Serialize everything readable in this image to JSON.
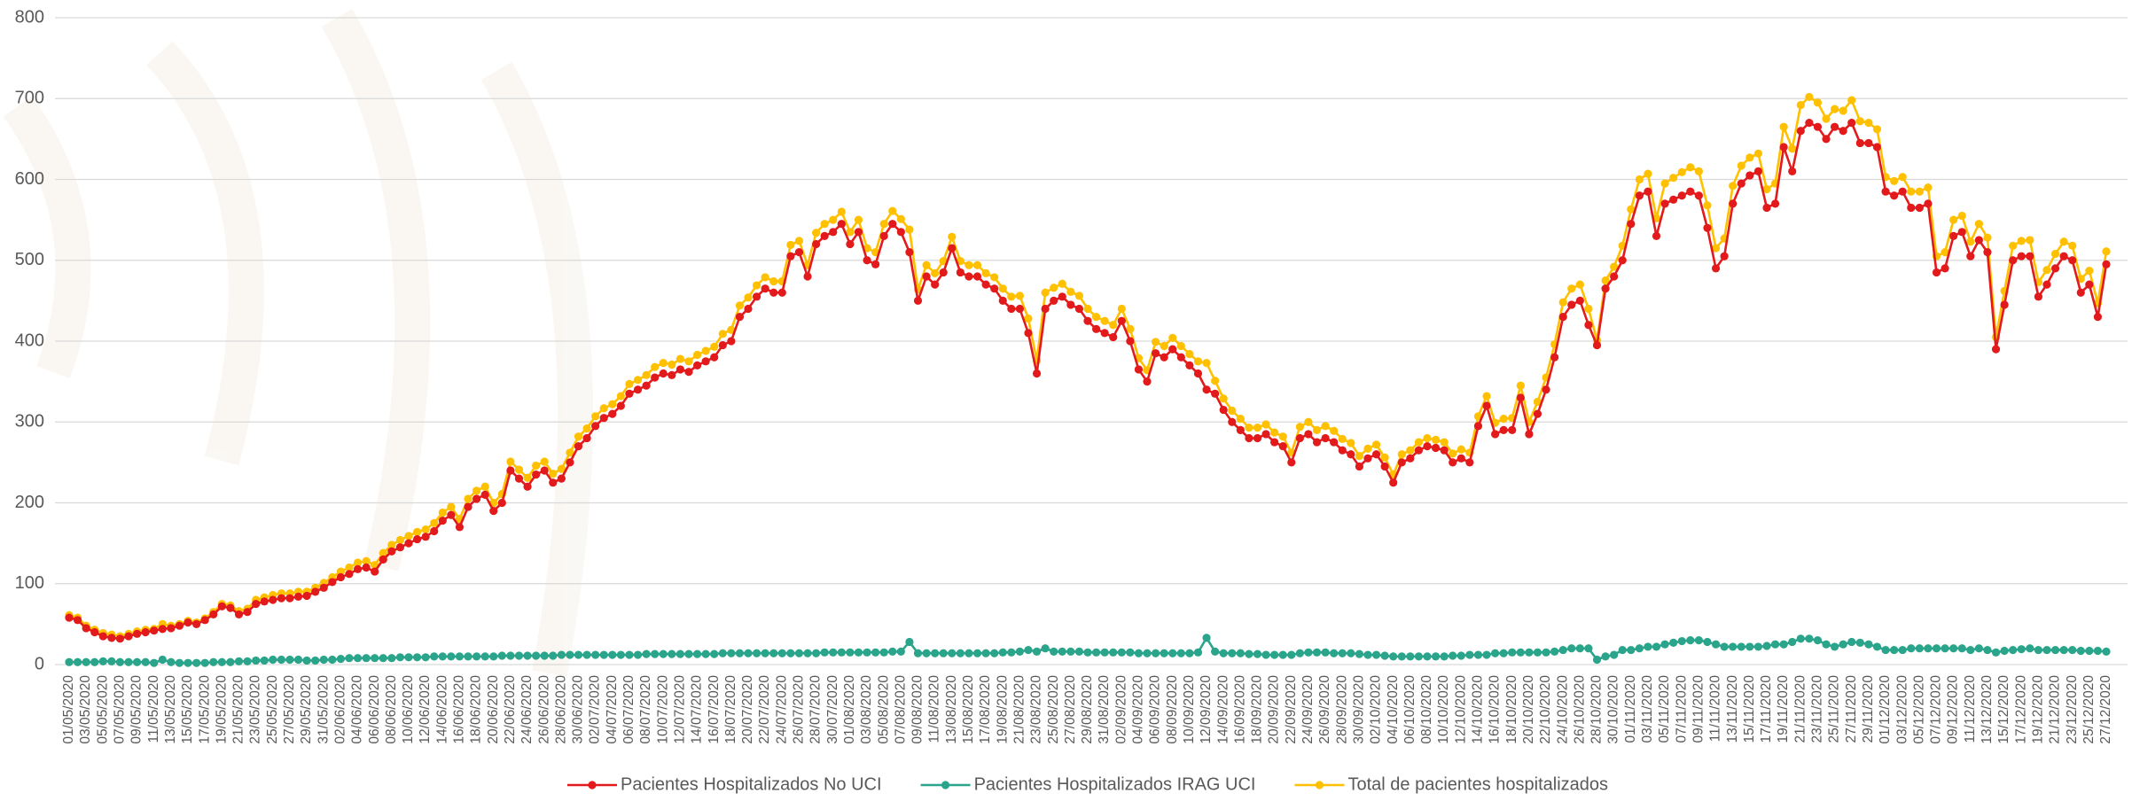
{
  "chart_data": {
    "type": "line",
    "categories": [
      "01/05/2020",
      null,
      "03/05/2020",
      null,
      "05/05/2020",
      null,
      "07/05/2020",
      null,
      "09/05/2020",
      null,
      "11/05/2020",
      null,
      "13/05/2020",
      null,
      "15/05/2020",
      null,
      "17/05/2020",
      null,
      "19/05/2020",
      null,
      "21/05/2020",
      null,
      "23/05/2020",
      null,
      "25/05/2020",
      null,
      "27/05/2020",
      null,
      "29/05/2020",
      null,
      "31/05/2020",
      null,
      "02/06/2020",
      null,
      "04/06/2020",
      null,
      "06/06/2020",
      null,
      "08/06/2020",
      null,
      "10/06/2020",
      null,
      "12/06/2020",
      null,
      "14/06/2020",
      null,
      "16/06/2020",
      null,
      "18/06/2020",
      null,
      "20/06/2020",
      null,
      "22/06/2020",
      null,
      "24/06/2020",
      null,
      "26/06/2020",
      null,
      "28/06/2020",
      null,
      "30/06/2020",
      null,
      "02/07/2020",
      null,
      "04/07/2020",
      null,
      "06/07/2020",
      null,
      "08/07/2020",
      null,
      "10/07/2020",
      null,
      "12/07/2020",
      null,
      "14/07/2020",
      null,
      "16/07/2020",
      null,
      "18/07/2020",
      null,
      "20/07/2020",
      null,
      "22/07/2020",
      null,
      "24/07/2020",
      null,
      "26/07/2020",
      null,
      "28/07/2020",
      null,
      "30/07/2020",
      null,
      "01/08/2020",
      null,
      "03/08/2020",
      null,
      "05/08/2020",
      null,
      "07/08/2020",
      null,
      "09/08/2020",
      null,
      "11/08/2020",
      null,
      "13/08/2020",
      null,
      "15/08/2020",
      null,
      "17/08/2020",
      null,
      "19/08/2020",
      null,
      "21/08/2020",
      null,
      "23/08/2020",
      null,
      "25/08/2020",
      null,
      "27/08/2020",
      null,
      "29/08/2020",
      null,
      "31/08/2020",
      null,
      "02/09/2020",
      null,
      "04/09/2020",
      null,
      "06/09/2020",
      null,
      "08/09/2020",
      null,
      "10/09/2020",
      null,
      "12/09/2020",
      null,
      "14/09/2020",
      null,
      "16/09/2020",
      null,
      "18/09/2020",
      null,
      "20/09/2020",
      null,
      "22/09/2020",
      null,
      "24/09/2020",
      null,
      "26/09/2020",
      null,
      "28/09/2020",
      null,
      "30/09/2020",
      null,
      "02/10/2020",
      null,
      "04/10/2020",
      null,
      "06/10/2020",
      null,
      "08/10/2020",
      null,
      "10/10/2020",
      null,
      "12/10/2020",
      null,
      "14/10/2020",
      null,
      "16/10/2020",
      null,
      "18/10/2020",
      null,
      "20/10/2020",
      null,
      "22/10/2020",
      null,
      "24/10/2020",
      null,
      "26/10/2020",
      null,
      "28/10/2020",
      null,
      "30/10/2020",
      null,
      "01/11/2020",
      null,
      "03/11/2020",
      null,
      "05/11/2020",
      null,
      "07/11/2020",
      null,
      "09/11/2020",
      null,
      "11/11/2020",
      null,
      "13/11/2020",
      null,
      "15/11/2020",
      null,
      "17/11/2020",
      null,
      "19/11/2020",
      null,
      "21/11/2020",
      null,
      "23/11/2020",
      null,
      "25/11/2020",
      null,
      "27/11/2020",
      null,
      "29/11/2020",
      null,
      "01/12/2020",
      null,
      "03/12/2020",
      null,
      "05/12/2020",
      null,
      "07/12/2020",
      null,
      "09/12/2020",
      null,
      "11/12/2020",
      null,
      "13/12/2020",
      null,
      "15/12/2020",
      null,
      "17/12/2020",
      null,
      "19/12/2020",
      null,
      "21/12/2020",
      null,
      "23/12/2020",
      null,
      "25/12/2020",
      null,
      "27/12/2020"
    ],
    "series": [
      {
        "name": "Pacientes Hospitalizados No UCI",
        "color": "#e31a1c",
        "values": [
          58,
          55,
          45,
          40,
          35,
          33,
          32,
          35,
          38,
          40,
          42,
          44,
          45,
          48,
          52,
          50,
          55,
          62,
          72,
          70,
          62,
          65,
          75,
          78,
          80,
          82,
          82,
          84,
          85,
          90,
          95,
          102,
          108,
          112,
          118,
          120,
          115,
          130,
          140,
          145,
          150,
          155,
          158,
          165,
          178,
          185,
          170,
          195,
          205,
          210,
          190,
          200,
          240,
          230,
          220,
          235,
          240,
          225,
          230,
          250,
          270,
          280,
          295,
          305,
          310,
          320,
          335,
          340,
          345,
          355,
          360,
          358,
          365,
          362,
          370,
          375,
          380,
          395,
          400,
          430,
          440,
          455,
          465,
          460,
          460,
          505,
          510,
          480,
          520,
          530,
          535,
          545,
          520,
          535,
          500,
          495,
          530,
          545,
          535,
          510,
          450,
          480,
          470,
          485,
          515,
          485,
          480,
          480,
          470,
          465,
          450,
          440,
          440,
          410,
          360,
          440,
          450,
          455,
          445,
          440,
          425,
          415,
          410,
          405,
          425,
          400,
          365,
          350,
          385,
          380,
          390,
          380,
          370,
          360,
          340,
          335,
          315,
          300,
          290,
          280,
          280,
          285,
          275,
          270,
          250,
          280,
          285,
          275,
          280,
          275,
          265,
          260,
          245,
          255,
          260,
          245,
          225,
          250,
          255,
          265,
          270,
          268,
          265,
          250,
          255,
          250,
          295,
          320,
          285,
          290,
          290,
          330,
          285,
          310,
          340,
          380,
          430,
          445,
          450,
          420,
          395,
          465,
          480,
          500,
          545,
          580,
          585,
          530,
          570,
          575,
          580,
          585,
          580,
          540,
          490,
          505,
          570,
          595,
          605,
          610,
          565,
          570,
          640,
          610,
          660,
          670,
          665,
          650,
          665,
          660,
          670,
          645,
          645,
          640,
          585,
          580,
          585,
          565,
          565,
          570,
          485,
          490,
          530,
          535,
          505,
          525,
          510,
          390,
          445,
          500,
          505,
          505,
          455,
          470,
          490,
          505,
          500,
          460,
          470,
          430,
          495
        ]
      },
      {
        "name": "Pacientes Hospitalizados IRAG UCI",
        "color": "#2aa58b",
        "values": [
          3,
          3,
          3,
          3,
          4,
          4,
          3,
          3,
          3,
          3,
          2,
          6,
          3,
          2,
          2,
          2,
          2,
          3,
          3,
          3,
          4,
          4,
          5,
          5,
          6,
          6,
          6,
          6,
          5,
          5,
          6,
          6,
          7,
          8,
          8,
          8,
          8,
          8,
          8,
          9,
          9,
          9,
          9,
          10,
          10,
          10,
          10,
          10,
          10,
          10,
          10,
          11,
          11,
          11,
          11,
          11,
          11,
          11,
          12,
          12,
          12,
          12,
          12,
          12,
          12,
          12,
          12,
          12,
          13,
          13,
          13,
          13,
          13,
          13,
          13,
          13,
          13,
          14,
          14,
          14,
          14,
          14,
          14,
          14,
          14,
          14,
          14,
          14,
          14,
          15,
          15,
          15,
          15,
          15,
          15,
          15,
          15,
          16,
          16,
          28,
          14,
          14,
          14,
          14,
          14,
          14,
          14,
          14,
          14,
          14,
          15,
          15,
          16,
          18,
          16,
          20,
          16,
          16,
          16,
          16,
          15,
          15,
          15,
          15,
          15,
          15,
          14,
          14,
          14,
          14,
          14,
          14,
          14,
          15,
          33,
          16,
          14,
          14,
          14,
          13,
          13,
          12,
          12,
          12,
          12,
          14,
          15,
          15,
          15,
          14,
          14,
          14,
          13,
          12,
          12,
          11,
          10,
          10,
          10,
          10,
          10,
          10,
          10,
          11,
          11,
          12,
          12,
          12,
          14,
          14,
          15,
          15,
          15,
          15,
          15,
          16,
          18,
          20,
          20,
          20,
          6,
          10,
          12,
          18,
          18,
          20,
          22,
          22,
          25,
          27,
          29,
          30,
          30,
          28,
          25,
          22,
          22,
          22,
          22,
          22,
          23,
          25,
          25,
          28,
          32,
          32,
          30,
          25,
          22,
          25,
          28,
          27,
          25,
          22,
          18,
          18,
          18,
          20,
          20,
          20,
          20,
          20,
          20,
          20,
          18,
          20,
          18,
          15,
          17,
          18,
          19,
          20,
          18,
          18,
          18,
          18,
          18,
          17,
          17,
          17,
          16
        ]
      },
      {
        "name": "Total de pacientes hospitalizados",
        "color": "#ffc000",
        "values": [
          61,
          58,
          48,
          43,
          39,
          37,
          35,
          38,
          41,
          43,
          44,
          50,
          48,
          50,
          54,
          52,
          57,
          65,
          75,
          73,
          66,
          69,
          80,
          83,
          86,
          88,
          88,
          90,
          90,
          95,
          101,
          108,
          115,
          120,
          126,
          128,
          123,
          138,
          148,
          154,
          159,
          164,
          167,
          175,
          188,
          195,
          180,
          205,
          215,
          220,
          200,
          211,
          251,
          241,
          231,
          246,
          251,
          236,
          242,
          262,
          282,
          292,
          307,
          317,
          322,
          332,
          347,
          352,
          358,
          368,
          373,
          371,
          378,
          375,
          383,
          388,
          393,
          409,
          414,
          444,
          454,
          469,
          479,
          474,
          474,
          519,
          524,
          494,
          534,
          545,
          550,
          560,
          535,
          550,
          515,
          510,
          545,
          561,
          551,
          538,
          464,
          494,
          484,
          499,
          529,
          499,
          494,
          494,
          484,
          479,
          465,
          455,
          456,
          428,
          376,
          460,
          466,
          471,
          461,
          456,
          440,
          430,
          425,
          420,
          440,
          415,
          379,
          364,
          399,
          394,
          404,
          394,
          384,
          375,
          373,
          351,
          329,
          314,
          304,
          293,
          293,
          297,
          287,
          282,
          262,
          294,
          300,
          290,
          295,
          289,
          279,
          274,
          258,
          267,
          272,
          256,
          235,
          260,
          265,
          275,
          280,
          278,
          275,
          261,
          266,
          262,
          307,
          332,
          299,
          304,
          305,
          345,
          300,
          325,
          355,
          396,
          448,
          465,
          470,
          440,
          401,
          475,
          492,
          518,
          563,
          600,
          607,
          552,
          595,
          602,
          609,
          615,
          610,
          568,
          515,
          527,
          592,
          617,
          627,
          632,
          588,
          595,
          665,
          638,
          692,
          702,
          695,
          675,
          687,
          685,
          698,
          672,
          670,
          662,
          603,
          598,
          603,
          585,
          585,
          590,
          505,
          510,
          550,
          555,
          523,
          545,
          528,
          405,
          462,
          518,
          524,
          525,
          473,
          488,
          508,
          523,
          518,
          477,
          487,
          447,
          511
        ]
      }
    ],
    "ylim": [
      0,
      800
    ],
    "yticks": [
      0,
      100,
      200,
      300,
      400,
      500,
      600,
      700,
      800
    ],
    "grid": true,
    "legend": "bottom"
  }
}
